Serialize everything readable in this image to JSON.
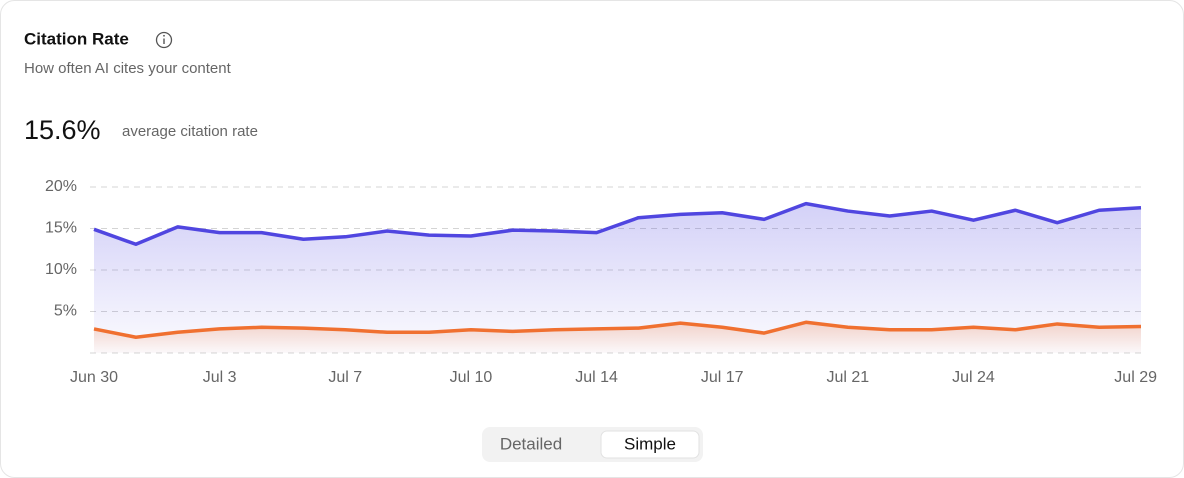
{
  "chart_data": {
    "type": "line",
    "title": "Citation Rate",
    "subtitle": "How often AI cites your content",
    "summary": {
      "value": "15.6%",
      "label": "average citation rate"
    },
    "categories": [
      "Jun 30",
      null,
      null,
      "Jul 3",
      null,
      null,
      "Jul 7",
      null,
      null,
      "Jul 10",
      null,
      null,
      "Jul 14",
      null,
      null,
      "Jul 17",
      null,
      null,
      "Jul 21",
      null,
      null,
      "Jul 24",
      null,
      null,
      null,
      "Jul 29"
    ],
    "series": [
      {
        "color": "#5046e0",
        "values": [
          14.9,
          13.1,
          15.2,
          14.5,
          14.5,
          13.7,
          14.0,
          14.7,
          14.2,
          14.1,
          14.8,
          14.7,
          14.5,
          16.3,
          16.7,
          16.9,
          16.1,
          18.0,
          17.1,
          16.5,
          17.1,
          16.0,
          17.2,
          15.7,
          17.2,
          17.5
        ]
      },
      {
        "color": "#f07030",
        "values": [
          2.9,
          1.9,
          2.5,
          2.9,
          3.1,
          3.0,
          2.8,
          2.5,
          2.5,
          2.8,
          2.6,
          2.8,
          2.9,
          3.0,
          3.6,
          3.1,
          2.4,
          3.7,
          3.1,
          2.8,
          2.8,
          3.1,
          2.8,
          3.5,
          3.1,
          3.2
        ]
      }
    ],
    "ylim": [
      0,
      20
    ],
    "yticks": [
      {
        "value": 5,
        "label": "5%"
      },
      {
        "value": 10,
        "label": "10%"
      },
      {
        "value": 15,
        "label": "15%"
      },
      {
        "value": 20,
        "label": "20%"
      }
    ],
    "grid": true
  },
  "controls": {
    "options": [
      "Detailed",
      "Simple"
    ],
    "selected": 1
  }
}
